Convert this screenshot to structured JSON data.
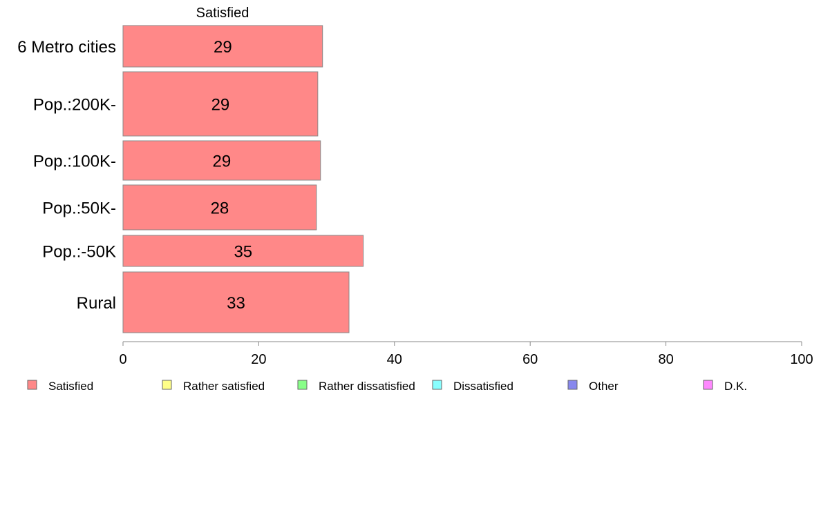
{
  "chart_data": {
    "type": "bar",
    "orientation": "horizontal",
    "stacked": true,
    "column_header": "Satisfied",
    "categories": [
      "6 Metro cities",
      "Pop.:200K-",
      "Pop.:100K-",
      "Pop.:50K-",
      "Pop.:-50K",
      "Rural"
    ],
    "series": [
      {
        "name": "Satisfied",
        "values": [
          29,
          29,
          29,
          28,
          35,
          33
        ],
        "color": "#ff8888"
      },
      {
        "name": "Rather satisfied",
        "values": [
          0,
          0,
          0,
          0,
          0,
          0
        ],
        "color": "#ffff88"
      },
      {
        "name": "Rather dissatisfied",
        "values": [
          0,
          0,
          0,
          0,
          0,
          0
        ],
        "color": "#88ff88"
      },
      {
        "name": "Dissatisfied",
        "values": [
          0,
          0,
          0,
          0,
          0,
          0
        ],
        "color": "#88ffff"
      },
      {
        "name": "Other",
        "values": [
          0,
          0,
          0,
          0,
          0,
          0
        ],
        "color": "#8888ee"
      },
      {
        "name": "D.K.",
        "values": [
          0,
          0,
          0,
          0,
          0,
          0
        ],
        "color": "#ff88ff"
      }
    ],
    "exact_values": [
      29.4,
      28.7,
      29.1,
      28.5,
      35.4,
      33.3
    ],
    "data_labels": [
      "29",
      "29",
      "29",
      "28",
      "35",
      "33"
    ],
    "xlim": [
      0,
      100
    ],
    "xticks": [
      0,
      20,
      40,
      60,
      80,
      100
    ],
    "grid": false,
    "legend_position": "bottom",
    "bar_edge_color": "#888888",
    "axis_color": "#888888"
  }
}
